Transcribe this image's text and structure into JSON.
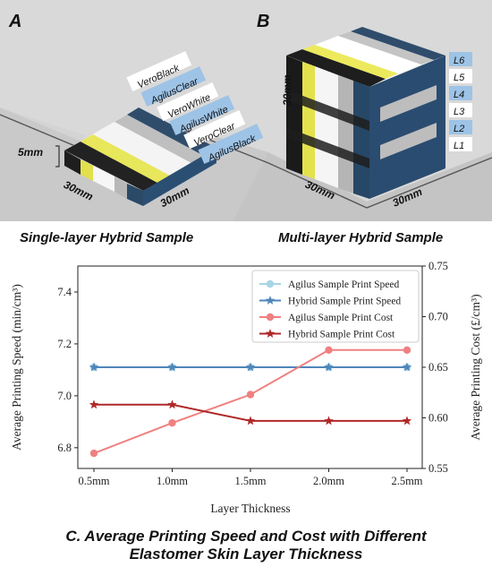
{
  "panel_a": {
    "letter": "A",
    "caption": "Single-layer Hybrid Sample",
    "height_dim": "5mm",
    "depth_dim": "30mm",
    "width_dim": "30mm",
    "materials": [
      "VeroBlack",
      "AgilusClear",
      "VeroWhite",
      "AgilusWhite",
      "VeroClear",
      "AgilusBlack"
    ]
  },
  "panel_b": {
    "letter": "B",
    "caption": "Multi-layer Hybrid Sample",
    "height_dim": "30mm",
    "depth_dim": "30mm",
    "width_dim": "30mm",
    "layers": [
      "L6",
      "L5",
      "L4",
      "L3",
      "L2",
      "L1"
    ]
  },
  "panel_c": {
    "caption_line1": "C. Average Printing Speed and Cost with Different",
    "caption_line2": "Elastomer Skin Layer Thickness"
  },
  "colors": {
    "agilus_speed": "#a8d5e5",
    "hybrid_speed": "#4f86bb",
    "agilus_cost": "#f08080",
    "hybrid_cost": "#b02828",
    "tag_blue": "#9dc3e6"
  },
  "chart_data": {
    "type": "line",
    "x": [
      "0.5mm",
      "1.0mm",
      "1.5mm",
      "2.0mm",
      "2.5mm"
    ],
    "xlabel": "Layer Thickness",
    "ylabel_left": "Average Printing Speed (min/cm³)",
    "ylabel_right": "Average Printing Cost (£/cm³)",
    "ylim_left": [
      6.72,
      7.5
    ],
    "yticks_left": [
      "6.8",
      "7.0",
      "7.2",
      "7.4"
    ],
    "ylim_right": [
      0.55,
      0.75
    ],
    "yticks_right": [
      "0.55",
      "0.60",
      "0.65",
      "0.70",
      "0.75"
    ],
    "legend_position": "top-right",
    "grid": false,
    "series": [
      {
        "name": "Agilus Sample Print Speed",
        "axis": "left",
        "marker": "circle",
        "values": [
          7.11,
          7.11,
          7.11,
          7.11,
          7.11
        ]
      },
      {
        "name": "Hybrid Sample Print Speed",
        "axis": "left",
        "marker": "star",
        "values": [
          7.11,
          7.11,
          7.11,
          7.11,
          7.11
        ]
      },
      {
        "name": "Agilus Sample Print Cost",
        "axis": "right",
        "marker": "circle",
        "values": [
          0.565,
          0.595,
          0.623,
          0.667,
          0.667
        ]
      },
      {
        "name": "Hybrid Sample Print Cost",
        "axis": "right",
        "marker": "star",
        "values": [
          0.613,
          0.613,
          0.597,
          0.597,
          0.597
        ]
      }
    ]
  }
}
